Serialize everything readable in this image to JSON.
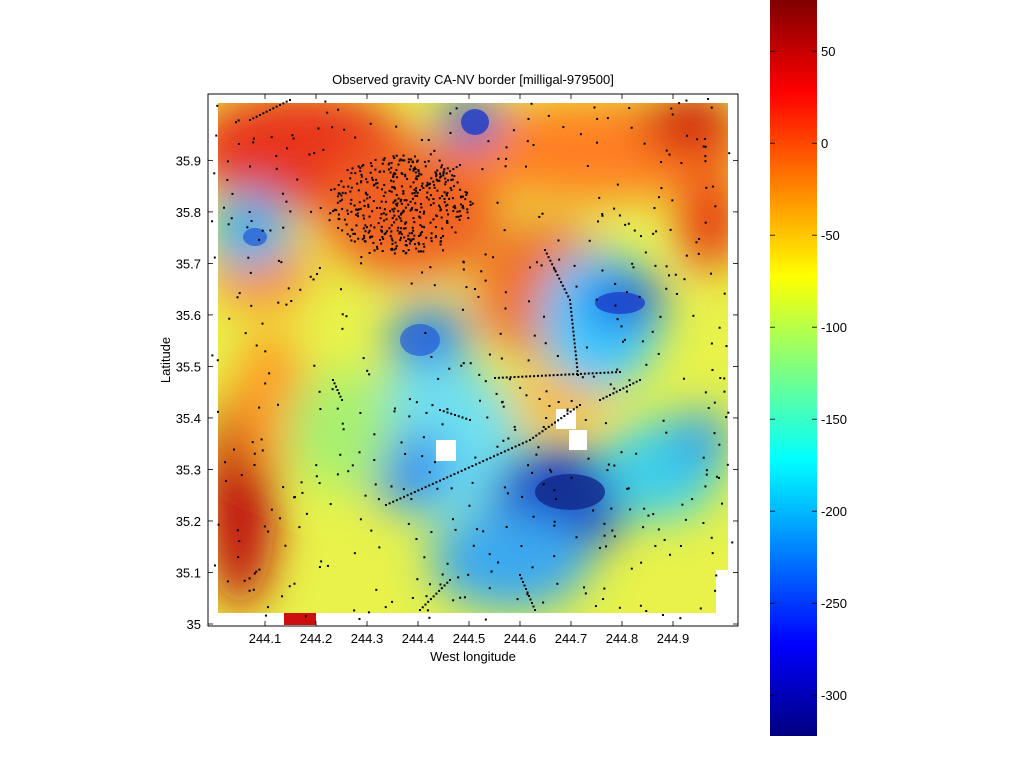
{
  "chart_data": {
    "type": "heatmap",
    "title": "Observed gravity CA-NV border [milligal-979500]",
    "xlabel": "West longitude",
    "ylabel": "Latitude",
    "xlim": [
      244.0,
      245.0
    ],
    "ylim": [
      35.0,
      35.99
    ],
    "x_ticks": [
      "244.1",
      "244.2",
      "244.3",
      "244.4",
      "244.5",
      "244.6",
      "244.7",
      "244.8",
      "244.9"
    ],
    "y_ticks": [
      "35",
      "35.1",
      "35.2",
      "35.3",
      "35.4",
      "35.5",
      "35.6",
      "35.7",
      "35.8",
      "35.9"
    ],
    "colorbar": {
      "colormap": "jet",
      "clim": [
        -320,
        80
      ],
      "ticks": [
        "50",
        "0",
        "-50",
        "-100",
        "-150",
        "-200",
        "-250",
        "-300"
      ]
    },
    "anomalies": [
      {
        "lon": 244.47,
        "lat": 35.93,
        "value": -250
      },
      {
        "lon": 244.08,
        "lat": 35.73,
        "value": -180
      },
      {
        "lon": 244.81,
        "lat": 35.61,
        "value": -230
      },
      {
        "lon": 244.42,
        "lat": 35.53,
        "value": -230
      },
      {
        "lon": 244.66,
        "lat": 35.26,
        "value": -300
      },
      {
        "lon": 244.43,
        "lat": 35.31,
        "value": -200
      },
      {
        "lon": 244.52,
        "lat": 35.13,
        "value": -190
      },
      {
        "lon": 244.32,
        "lat": 35.82,
        "value": 30
      },
      {
        "lon": 244.05,
        "lat": 35.22,
        "value": 60
      },
      {
        "lon": 244.9,
        "lat": 35.78,
        "value": 50
      },
      {
        "lon": 244.82,
        "lat": 35.97,
        "value": 60
      },
      {
        "lon": 244.56,
        "lat": 35.65,
        "value": 20
      }
    ]
  }
}
